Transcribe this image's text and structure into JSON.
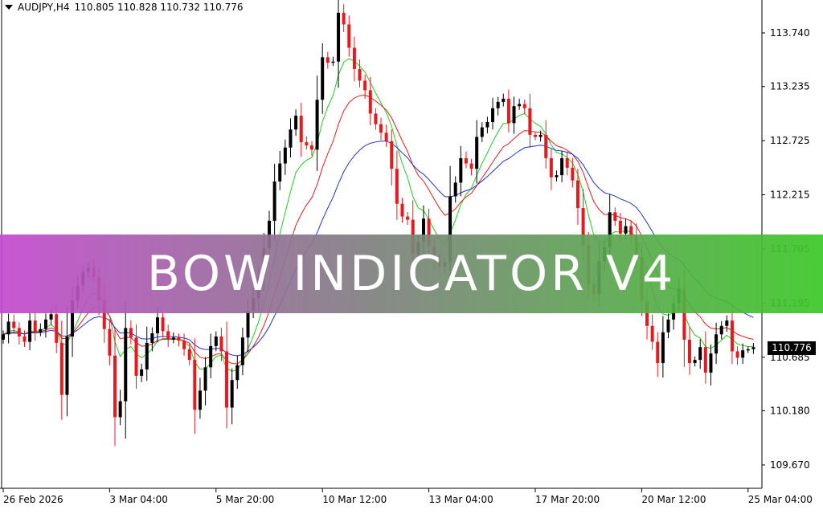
{
  "header": {
    "symbol": "AUDJPY,H4",
    "ohlc": "110.805 110.828 110.732 110.776"
  },
  "banner": {
    "text": "BOW INDICATOR V4"
  },
  "current_price": "110.776",
  "chart_data": {
    "type": "candlestick",
    "ylim": [
      109.45,
      114.05
    ],
    "y_ticks": [
      "113.740",
      "113.235",
      "112.725",
      "112.215",
      "111.705",
      "111.195",
      "110.685",
      "110.180",
      "109.670"
    ],
    "x_ticks": [
      "26 Feb 2026",
      "3 Mar 04:00",
      "5 Mar 20:00",
      "10 Mar 12:00",
      "13 Mar 04:00",
      "17 Mar 20:00",
      "20 Mar 12:00",
      "25 Mar 04:00"
    ],
    "x_tick_index": [
      0,
      20,
      40,
      60,
      80,
      100,
      120,
      140
    ],
    "up_color": "#000000",
    "down_color": "#e8191e",
    "close": [
      110.9,
      111.02,
      110.96,
      110.88,
      110.83,
      111.03,
      110.92,
      110.95,
      111.04,
      111.09,
      110.82,
      110.33,
      110.88,
      111.22,
      111.36,
      111.49,
      111.53,
      111.44,
      111.22,
      110.95,
      110.7,
      110.12,
      110.27,
      110.96,
      110.87,
      110.51,
      110.57,
      110.82,
      110.91,
      111.06,
      110.93,
      110.85,
      110.87,
      110.84,
      110.76,
      110.66,
      110.19,
      110.37,
      110.59,
      110.79,
      110.88,
      110.74,
      110.21,
      110.47,
      110.61,
      110.87,
      111.12,
      111.24,
      111.44,
      111.71,
      111.97,
      112.34,
      112.51,
      112.66,
      112.83,
      112.96,
      112.71,
      112.68,
      112.64,
      113.11,
      113.51,
      113.46,
      113.47,
      113.93,
      113.82,
      113.6,
      113.4,
      113.29,
      113.2,
      112.98,
      112.88,
      112.8,
      112.72,
      112.46,
      112.13,
      112.01,
      111.98,
      111.66,
      111.77,
      111.99,
      111.73,
      111.6,
      111.54,
      111.58,
      112.2,
      112.33,
      112.56,
      112.51,
      112.46,
      112.76,
      112.85,
      112.9,
      113.03,
      113.09,
      113.12,
      112.89,
      113.05,
      113.07,
      113.03,
      112.78,
      112.76,
      112.78,
      112.56,
      112.38,
      112.4,
      112.56,
      112.47,
      112.35,
      112.09,
      111.74,
      111.37,
      111.28,
      111.59,
      111.72,
      112.05,
      111.97,
      111.85,
      111.92,
      111.83,
      111.63,
      111.21,
      110.98,
      110.83,
      110.63,
      110.92,
      111.04,
      111.19,
      111.33,
      110.85,
      110.63,
      110.66,
      110.78,
      110.54,
      110.72,
      110.9,
      110.98,
      111.03,
      110.74,
      110.68,
      110.75,
      110.76,
      110.78
    ]
  }
}
